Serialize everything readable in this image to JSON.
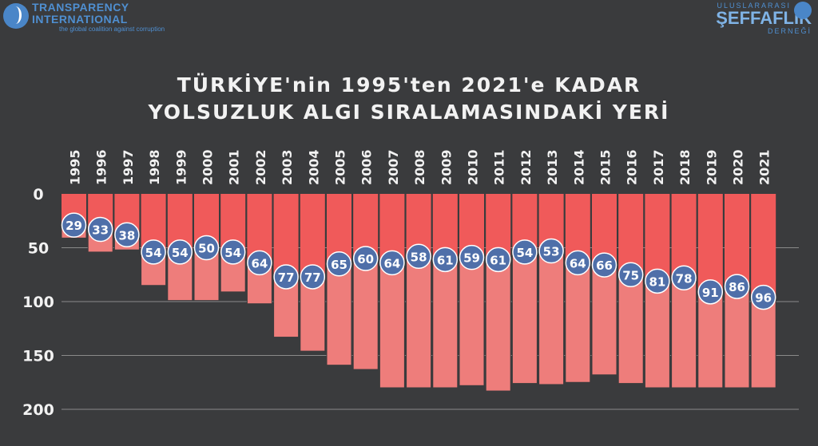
{
  "header": {
    "left_logo_line1": "TRANSPARENCY",
    "left_logo_line2": "INTERNATIONAL",
    "left_logo_tagline": "the global coalition against corruption",
    "right_logo_line1": "ULUSLARARASI",
    "right_logo_line2": "ŞEFFAFLIK",
    "right_logo_line3": "DERNEĞİ"
  },
  "colors": {
    "background": "#3a3b3d",
    "rank_fill": "#ee7d7b",
    "top_fill": "#f05a5a",
    "marker": "#4f6fa9",
    "marker_text": "#ffffff"
  },
  "chart_data": {
    "type": "bar",
    "title_line1": "TÜRKİYE'nin 1995'ten 2021'e KADAR",
    "title_line2": "YOLSUZLUK ALGI SIRALAMASINDAKİ YERİ",
    "categories": [
      "1995",
      "1996",
      "1997",
      "1998",
      "1999",
      "2000",
      "2001",
      "2002",
      "2003",
      "2004",
      "2005",
      "2006",
      "2007",
      "2008",
      "2009",
      "2010",
      "2011",
      "2012",
      "2013",
      "2014",
      "2015",
      "2016",
      "2017",
      "2018",
      "2019",
      "2020",
      "2021"
    ],
    "series": [
      {
        "values": [
          29,
          33,
          38,
          54,
          54,
          50,
          54,
          64,
          77,
          77,
          65,
          60,
          64,
          58,
          61,
          59,
          61,
          54,
          53,
          64,
          66,
          75,
          81,
          78,
          91,
          86,
          96
        ]
      }
    ],
    "countries_total": [
      41,
      54,
      52,
      85,
      99,
      99,
      91,
      102,
      133,
      146,
      159,
      163,
      180,
      180,
      180,
      178,
      183,
      176,
      177,
      175,
      168,
      176,
      180,
      180,
      180,
      180,
      180
    ],
    "y_axis_reversed": true,
    "ylim": [
      0,
      200
    ],
    "yticks": [
      0,
      50,
      100,
      150,
      200
    ],
    "xlabel_position": "top",
    "grid": true
  }
}
